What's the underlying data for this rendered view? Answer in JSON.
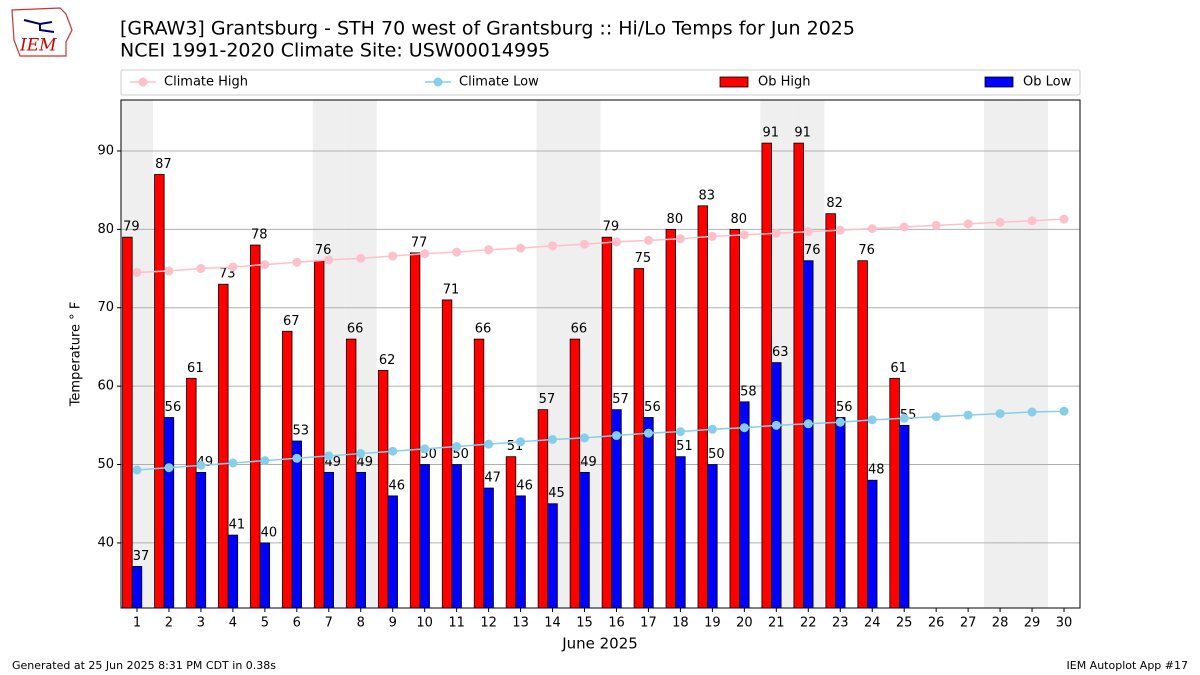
{
  "logo_text": "IEM",
  "footer_left": "Generated at 25 Jun 2025 8:31 PM CDT in 0.38s",
  "footer_right": "IEM Autoplot App #17",
  "chart_data": {
    "type": "bar",
    "title": "[GRAW3] Grantsburg - STH 70 west of Grantsburg :: Hi/Lo Temps for Jun 2025",
    "subtitle": "NCEI 1991-2020 Climate Site: USW00014995",
    "xlabel": "June 2025",
    "ylabel": "Temperature $^\\circ$F",
    "ylabel_text": "Temperature ° F",
    "x": [
      1,
      2,
      3,
      4,
      5,
      6,
      7,
      8,
      9,
      10,
      11,
      12,
      13,
      14,
      15,
      16,
      17,
      18,
      19,
      20,
      21,
      22,
      23,
      24,
      25,
      26,
      27,
      28,
      29,
      30
    ],
    "xlim": [
      0.5,
      30.5
    ],
    "xticks": [
      1,
      2,
      3,
      4,
      5,
      6,
      7,
      8,
      9,
      10,
      11,
      12,
      13,
      14,
      15,
      16,
      17,
      18,
      19,
      20,
      21,
      22,
      23,
      24,
      25,
      26,
      27,
      28,
      29,
      30
    ],
    "ylim": [
      31.7,
      96.5
    ],
    "yticks": [
      40,
      50,
      60,
      70,
      80,
      90
    ],
    "grid": true,
    "shaded_x": [
      1,
      7,
      8,
      14,
      15,
      21,
      22,
      28,
      29
    ],
    "shade_color": "#efefef",
    "series": [
      {
        "name": "Climate High",
        "kind": "line",
        "color": "#ffc0cb",
        "values": [
          74.5,
          74.7,
          75.0,
          75.2,
          75.5,
          75.8,
          76.1,
          76.3,
          76.6,
          76.9,
          77.1,
          77.4,
          77.6,
          77.9,
          78.1,
          78.4,
          78.6,
          78.8,
          79.1,
          79.3,
          79.5,
          79.7,
          79.9,
          80.1,
          80.3,
          80.5,
          80.7,
          80.9,
          81.1,
          81.3
        ]
      },
      {
        "name": "Climate Low",
        "kind": "line",
        "color": "#87ceeb",
        "values": [
          49.3,
          49.6,
          49.9,
          50.2,
          50.5,
          50.8,
          51.1,
          51.4,
          51.7,
          52.0,
          52.3,
          52.6,
          52.9,
          53.2,
          53.4,
          53.7,
          54.0,
          54.2,
          54.5,
          54.7,
          55.0,
          55.2,
          55.4,
          55.7,
          55.9,
          56.1,
          56.3,
          56.5,
          56.7,
          56.8
        ]
      },
      {
        "name": "Ob High",
        "kind": "bar",
        "color": "#ff0000",
        "values": [
          79,
          87,
          61,
          73,
          78,
          67,
          76,
          66,
          62,
          77,
          71,
          66,
          51,
          57,
          66,
          79,
          75,
          80,
          83,
          80,
          91,
          91,
          82,
          76,
          61,
          null,
          null,
          null,
          null,
          null
        ]
      },
      {
        "name": "Ob Low",
        "kind": "bar",
        "color": "#0000ff",
        "values": [
          37,
          56,
          49,
          41,
          40,
          53,
          49,
          49,
          46,
          50,
          50,
          47,
          46,
          45,
          49,
          57,
          56,
          51,
          50,
          58,
          63,
          76,
          56,
          48,
          55,
          null,
          null,
          null,
          null,
          null
        ]
      }
    ]
  }
}
